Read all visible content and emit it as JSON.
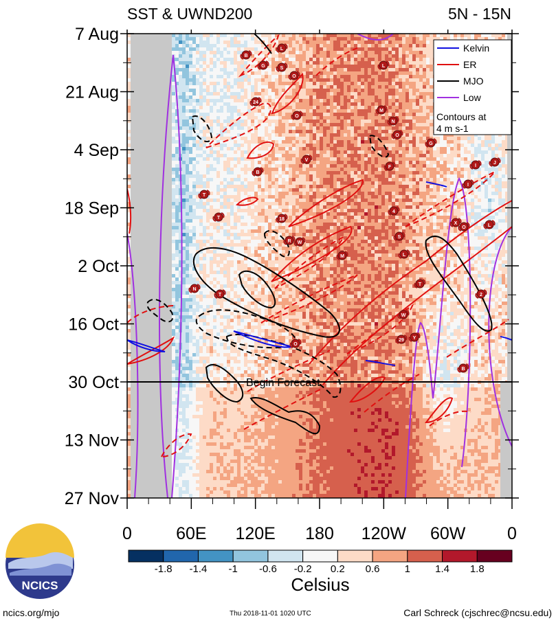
{
  "chart_data": {
    "type": "heatmap",
    "title_left": "SST & UWND200",
    "title_right": "5N - 15N",
    "y_ticks": [
      "7 Aug",
      "21 Aug",
      "4 Sep",
      "18 Sep",
      "2 Oct",
      "16 Oct",
      "30 Oct",
      "13 Nov",
      "27 Nov"
    ],
    "x_ticks": [
      "0",
      "60E",
      "120E",
      "180",
      "120W",
      "60W",
      "0"
    ],
    "x_range_deg_east": [
      0,
      360
    ],
    "forecast_label": "Begin Forecast",
    "forecast_start": "30 Oct",
    "legend": {
      "placement": "top-right",
      "entries": [
        {
          "name": "Kelvin",
          "color": "#1010e0"
        },
        {
          "name": "ER",
          "color": "#e01010"
        },
        {
          "name": "MJO",
          "color": "#000000"
        },
        {
          "name": "Low",
          "color": "#a030e0"
        }
      ],
      "note_line1": "Contours at",
      "note_line2": "4 m s-1"
    },
    "colorbar": {
      "label": "Celsius",
      "tick_labels": [
        "-1.8",
        "-1.4",
        "-1",
        "-0.6",
        "-0.2",
        "0.2",
        "0.6",
        "1",
        "1.4",
        "1.8"
      ],
      "colors": [
        "#053061",
        "#2166ac",
        "#4393c3",
        "#92c5de",
        "#d1e5f0",
        "#f7f7f7",
        "#fddbc7",
        "#f4a582",
        "#d6604d",
        "#b2182b",
        "#67001f"
      ]
    },
    "storm_labels": [
      "B",
      "L",
      "G",
      "S",
      "O",
      "L",
      "24",
      "O",
      "M",
      "N",
      "O",
      "G",
      "V",
      "B",
      "F",
      "I",
      "J",
      "I",
      "T",
      "18",
      "4",
      "T",
      "X",
      "O",
      "L",
      "R",
      "W",
      "S",
      "M",
      "L",
      "T",
      "N",
      "T",
      "2",
      "W",
      "29",
      "Y",
      "O"
    ]
  },
  "footer": {
    "logo_text": "NCICS",
    "url": "ncics.org/mjo",
    "timestamp": "Thu 2018-11-01 1020 UTC",
    "author": "Carl Schreck (cjschrec@ncsu.edu)"
  }
}
